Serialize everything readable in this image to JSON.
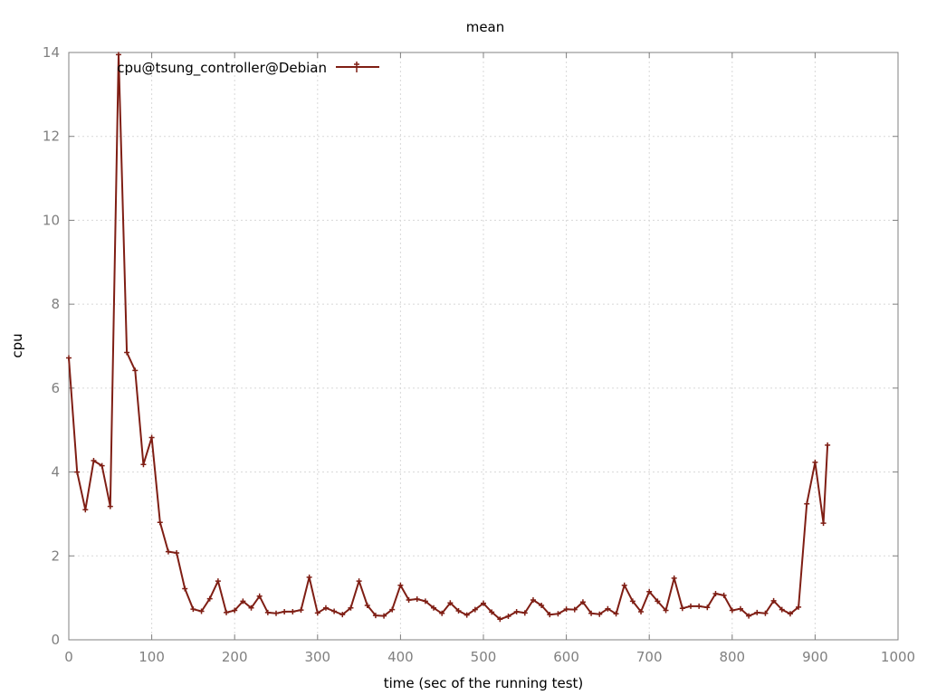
{
  "chart_data": {
    "type": "line",
    "title": "mean",
    "xlabel": "time (sec of the running test)",
    "ylabel": "cpu",
    "xlim": [
      0,
      1000
    ],
    "ylim": [
      0,
      14
    ],
    "x_ticks": [
      0,
      100,
      200,
      300,
      400,
      500,
      600,
      700,
      800,
      900,
      1000
    ],
    "y_ticks": [
      0,
      2,
      4,
      6,
      8,
      10,
      12,
      14
    ],
    "grid": true,
    "legend_position": "top-left",
    "series": [
      {
        "name": "cpu@tsung_controller@Debian",
        "color": "#7f1e14",
        "marker": "plus",
        "x": [
          0,
          10,
          20,
          30,
          40,
          50,
          60,
          70,
          80,
          90,
          100,
          110,
          120,
          130,
          140,
          150,
          160,
          170,
          180,
          190,
          200,
          210,
          220,
          230,
          240,
          250,
          260,
          270,
          280,
          290,
          300,
          310,
          320,
          330,
          340,
          350,
          360,
          370,
          380,
          390,
          400,
          410,
          420,
          430,
          440,
          450,
          460,
          470,
          480,
          490,
          500,
          510,
          520,
          530,
          540,
          550,
          560,
          570,
          580,
          590,
          600,
          610,
          620,
          630,
          640,
          650,
          660,
          670,
          680,
          690,
          700,
          710,
          720,
          730,
          740,
          750,
          760,
          770,
          780,
          790,
          800,
          810,
          820,
          830,
          840,
          850,
          860,
          870,
          880,
          890,
          900,
          910,
          915
        ],
        "y": [
          6.72,
          4.0,
          3.1,
          4.27,
          4.15,
          3.18,
          13.95,
          6.85,
          6.42,
          4.18,
          4.82,
          2.8,
          2.1,
          2.07,
          1.22,
          0.73,
          0.68,
          0.98,
          1.4,
          0.65,
          0.7,
          0.92,
          0.76,
          1.04,
          0.65,
          0.63,
          0.67,
          0.67,
          0.71,
          1.49,
          0.64,
          0.76,
          0.68,
          0.6,
          0.76,
          1.4,
          0.82,
          0.58,
          0.57,
          0.72,
          1.3,
          0.95,
          0.97,
          0.92,
          0.76,
          0.63,
          0.88,
          0.69,
          0.59,
          0.72,
          0.87,
          0.66,
          0.49,
          0.56,
          0.67,
          0.64,
          0.95,
          0.82,
          0.6,
          0.62,
          0.73,
          0.72,
          0.9,
          0.63,
          0.61,
          0.74,
          0.62,
          1.3,
          0.92,
          0.67,
          1.15,
          0.92,
          0.7,
          1.47,
          0.75,
          0.8,
          0.8,
          0.77,
          1.1,
          1.06,
          0.7,
          0.74,
          0.57,
          0.65,
          0.63,
          0.93,
          0.72,
          0.62,
          0.78,
          3.24,
          4.23,
          2.78,
          4.64
        ]
      }
    ]
  }
}
